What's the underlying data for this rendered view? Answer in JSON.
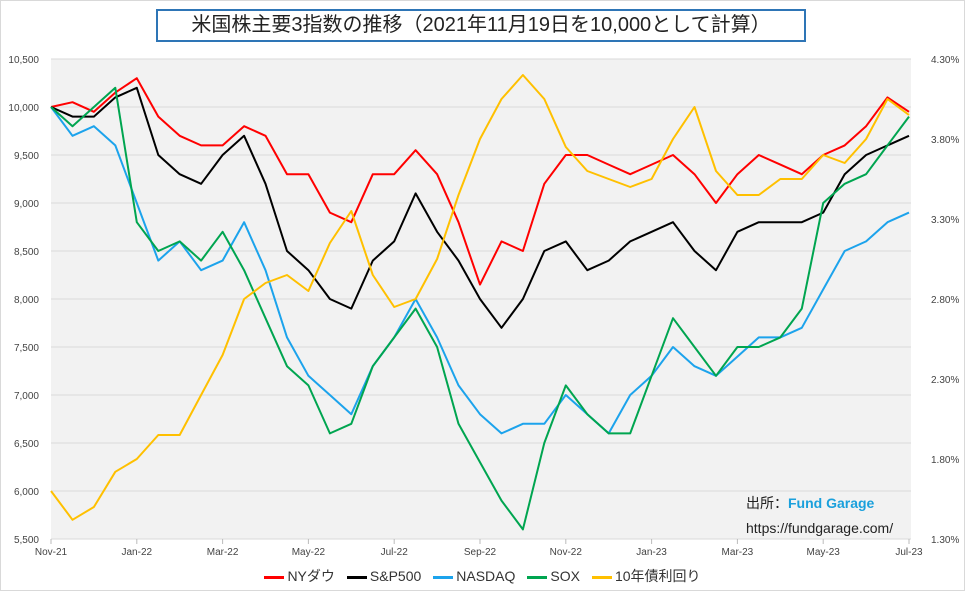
{
  "chart_data": {
    "type": "line",
    "title": "米国株主要3指数の推移（2021年11月19日を10,000として計算）",
    "x_note": "half-month steps, 0 = Nov-21",
    "x": [
      0,
      0.5,
      1,
      1.5,
      2,
      2.5,
      3,
      3.5,
      4,
      4.5,
      5,
      5.5,
      6,
      6.5,
      7,
      7.5,
      8,
      8.5,
      9,
      9.5,
      10,
      10.5,
      11,
      11.5,
      12,
      12.5,
      13,
      13.5,
      14,
      14.5,
      15,
      15.5,
      16,
      16.5,
      17,
      17.5,
      18,
      18.5,
      19,
      19.5,
      20
    ],
    "x_ticks": [
      "Nov-21",
      "Jan-22",
      "Mar-22",
      "May-22",
      "Jul-22",
      "Sep-22",
      "Nov-22",
      "Jan-23",
      "Mar-23",
      "May-23",
      "Jul-23"
    ],
    "y_left": {
      "range": [
        5500,
        10500
      ],
      "ticks": [
        "5,500",
        "6,000",
        "6,500",
        "7,000",
        "7,500",
        "8,000",
        "8,500",
        "9,000",
        "9,500",
        "10,000",
        "10,500"
      ]
    },
    "y_right": {
      "range": [
        1.3,
        4.3
      ],
      "ticks": [
        "1.30%",
        "1.80%",
        "2.30%",
        "2.80%",
        "3.30%",
        "3.80%",
        "4.30%"
      ]
    },
    "grid": true,
    "legend_position": "bottom",
    "series": [
      {
        "name": "NYダウ",
        "axis": "left",
        "color": "#ff0000",
        "values": [
          10000,
          10050,
          9950,
          10150,
          10300,
          9900,
          9700,
          9600,
          9600,
          9800,
          9700,
          9300,
          9300,
          8900,
          8800,
          9300,
          9300,
          9550,
          9300,
          8800,
          8150,
          8600,
          8500,
          9200,
          9500,
          9500,
          9400,
          9300,
          9400,
          9500,
          9300,
          9000,
          9300,
          9500,
          9400,
          9300,
          9500,
          9600,
          9800,
          10100,
          9950
        ]
      },
      {
        "name": "S&P500",
        "axis": "left",
        "color": "#000000",
        "values": [
          10000,
          9900,
          9900,
          10100,
          10200,
          9500,
          9300,
          9200,
          9500,
          9700,
          9200,
          8500,
          8300,
          8000,
          7900,
          8400,
          8600,
          9100,
          8700,
          8400,
          8000,
          7700,
          8000,
          8500,
          8600,
          8300,
          8400,
          8600,
          8700,
          8800,
          8500,
          8300,
          8700,
          8800,
          8800,
          8800,
          8900,
          9300,
          9500,
          9600,
          9700
        ]
      },
      {
        "name": "NASDAQ",
        "axis": "left",
        "color": "#1ca3ec",
        "values": [
          10000,
          9700,
          9800,
          9600,
          9000,
          8400,
          8600,
          8300,
          8400,
          8800,
          8300,
          7600,
          7200,
          7000,
          6800,
          7300,
          7600,
          8000,
          7600,
          7100,
          6800,
          6600,
          6700,
          6700,
          7000,
          6800,
          6600,
          7000,
          7200,
          7500,
          7300,
          7200,
          7400,
          7600,
          7600,
          7700,
          8100,
          8500,
          8600,
          8800,
          8900
        ]
      },
      {
        "name": "SOX",
        "axis": "left",
        "color": "#00a550",
        "values": [
          10000,
          9800,
          10000,
          10200,
          8800,
          8500,
          8600,
          8400,
          8700,
          8300,
          7800,
          7300,
          7100,
          6600,
          6700,
          7300,
          7600,
          7900,
          7500,
          6700,
          6300,
          5900,
          5600,
          6500,
          7100,
          6800,
          6600,
          6600,
          7200,
          7800,
          7500,
          7200,
          7500,
          7500,
          7600,
          7900,
          9000,
          9200,
          9300,
          9600,
          9900
        ]
      },
      {
        "name": "10年債利回り",
        "axis": "right",
        "color": "#ffc000",
        "values": [
          1.6,
          1.42,
          1.5,
          1.72,
          1.8,
          1.95,
          1.95,
          2.2,
          2.45,
          2.8,
          2.9,
          2.95,
          2.85,
          3.15,
          3.35,
          2.95,
          2.75,
          2.8,
          3.05,
          3.45,
          3.8,
          4.05,
          4.2,
          4.05,
          3.75,
          3.6,
          3.55,
          3.5,
          3.55,
          3.8,
          4.0,
          3.6,
          3.45,
          3.45,
          3.55,
          3.55,
          3.7,
          3.65,
          3.8,
          4.05,
          3.95
        ]
      }
    ]
  },
  "source": {
    "label": "出所：",
    "brand": "Fund Garage",
    "url": "https://fundgarage.com/"
  }
}
